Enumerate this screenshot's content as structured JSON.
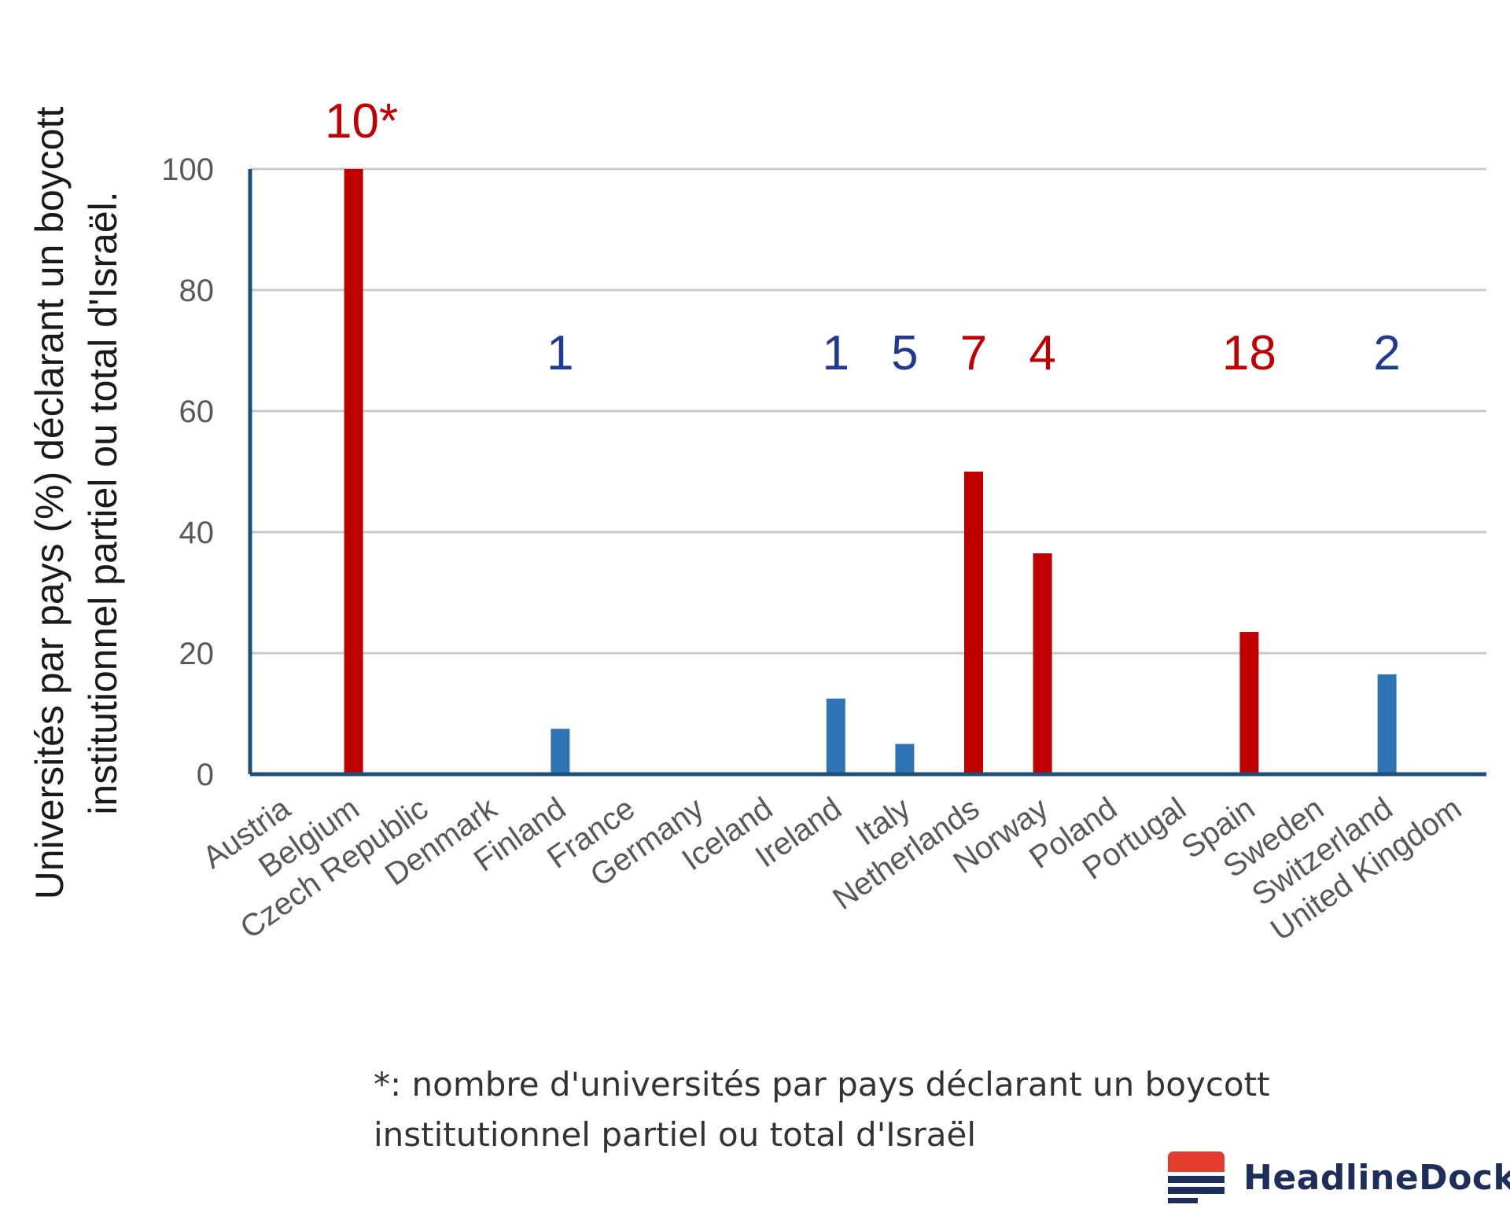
{
  "chart_data": {
    "type": "bar",
    "title": "",
    "ylabel": "Universités par pays (%) déclarant un boycott institutionnel partiel ou total d'Israël.",
    "ylabel_lines": [
      "Universités par pays (%) déclarant un boycott",
      "institutionnel partiel ou total d'Israël."
    ],
    "xlabel": "",
    "ylim": [
      0,
      100
    ],
    "yticks": [
      0,
      20,
      40,
      60,
      80,
      100
    ],
    "grid": true,
    "categories": [
      "Austria",
      "Belgium",
      "Czech Republic",
      "Denmark",
      "Finland",
      "France",
      "Germany",
      "Iceland",
      "Ireland",
      "Italy",
      "Netherlands",
      "Norway",
      "Poland",
      "Portugal",
      "Spain",
      "Sweden",
      "Switzerland",
      "United Kingdom"
    ],
    "values": [
      0,
      100,
      0,
      0,
      7.5,
      0,
      0,
      0,
      12.5,
      5,
      50,
      36.5,
      0,
      0,
      23.5,
      0,
      16.5,
      0
    ],
    "bar_colors": [
      "#2e74b5",
      "#c00000",
      "#2e74b5",
      "#2e74b5",
      "#2e74b5",
      "#2e74b5",
      "#2e74b5",
      "#2e74b5",
      "#2e74b5",
      "#2e74b5",
      "#c00000",
      "#c00000",
      "#2e74b5",
      "#2e74b5",
      "#c00000",
      "#2e74b5",
      "#2e74b5",
      "#2e74b5"
    ],
    "count_labels": [
      {
        "category": "Belgium",
        "text": "10*",
        "color": "#c00000"
      },
      {
        "category": "Finland",
        "text": "1",
        "color": "#1f3a93"
      },
      {
        "category": "Ireland",
        "text": "1",
        "color": "#1f3a93"
      },
      {
        "category": "Italy",
        "text": "5",
        "color": "#1f3a93"
      },
      {
        "category": "Netherlands",
        "text": "7",
        "color": "#c00000"
      },
      {
        "category": "Norway",
        "text": "4",
        "color": "#c00000"
      },
      {
        "category": "Spain",
        "text": "18",
        "color": "#c00000"
      },
      {
        "category": "Switzerland",
        "text": "2",
        "color": "#1f3a93"
      }
    ],
    "footnote_lines": [
      "*: nombre d'universités par pays déclarant un boycott",
      "institutionnel partiel ou total d'Israël"
    ]
  },
  "brand": {
    "name": "HeadlineDock",
    "colors": {
      "red": "#e43d30",
      "navy": "#1e2e5a"
    }
  }
}
